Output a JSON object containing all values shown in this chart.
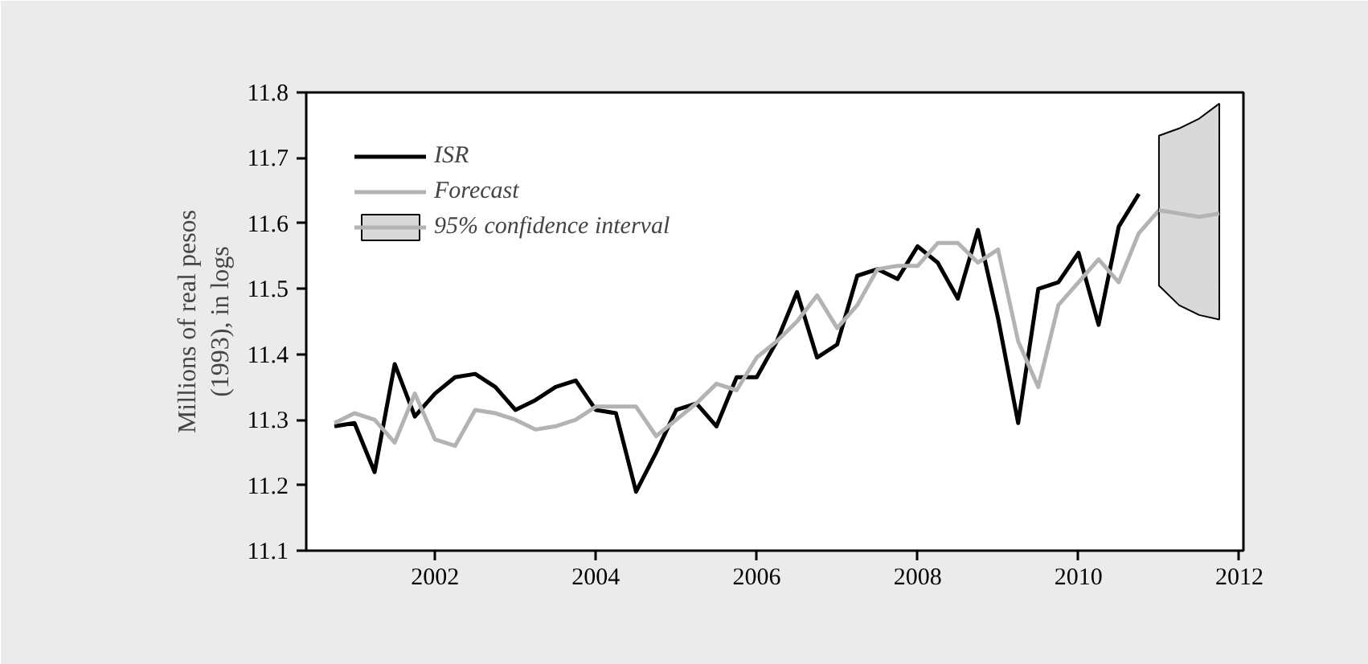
{
  "chart_data": {
    "type": "line",
    "ylabel": "Millions of real pesos\n(1993), in logs",
    "xlim": [
      2000.4,
      2012.05
    ],
    "xticks": [
      2002,
      2004,
      2006,
      2008,
      2010,
      2012
    ],
    "ylim": [
      11.1,
      11.8
    ],
    "yticks": [
      11.1,
      11.2,
      11.3,
      11.4,
      11.5,
      11.6,
      11.7,
      11.8
    ],
    "grid": false,
    "legend": "top left",
    "marker": "none",
    "line_style": "solid",
    "series": [
      {
        "name": "ISR",
        "color": "#000000",
        "x": [
          2000.75,
          2001.0,
          2001.25,
          2001.5,
          2001.75,
          2002.0,
          2002.25,
          2002.5,
          2002.75,
          2003.0,
          2003.25,
          2003.5,
          2003.75,
          2004.0,
          2004.25,
          2004.5,
          2004.75,
          2005.0,
          2005.25,
          2005.5,
          2005.75,
          2006.0,
          2006.25,
          2006.5,
          2006.75,
          2007.0,
          2007.25,
          2007.5,
          2007.75,
          2008.0,
          2008.25,
          2008.5,
          2008.75,
          2009.0,
          2009.25,
          2009.5,
          2009.75,
          2010.0,
          2010.25,
          2010.5,
          2010.75
        ],
        "values": [
          11.29,
          11.295,
          11.22,
          11.385,
          11.305,
          11.34,
          11.365,
          11.37,
          11.35,
          11.315,
          11.33,
          11.35,
          11.36,
          11.315,
          11.31,
          11.19,
          11.25,
          11.315,
          11.325,
          11.29,
          11.365,
          11.365,
          11.42,
          11.495,
          11.395,
          11.415,
          11.52,
          11.53,
          11.515,
          11.565,
          11.54,
          11.485,
          11.59,
          11.455,
          11.295,
          11.5,
          11.51,
          11.555,
          11.445,
          11.595,
          11.645
        ]
      },
      {
        "name": "Forecast",
        "color": "#b3b3b3",
        "x": [
          2000.75,
          2001.0,
          2001.25,
          2001.5,
          2001.75,
          2002.0,
          2002.25,
          2002.5,
          2002.75,
          2003.0,
          2003.25,
          2003.5,
          2003.75,
          2004.0,
          2004.25,
          2004.5,
          2004.75,
          2005.0,
          2005.25,
          2005.5,
          2005.75,
          2006.0,
          2006.25,
          2006.5,
          2006.75,
          2007.0,
          2007.25,
          2007.5,
          2007.75,
          2008.0,
          2008.25,
          2008.5,
          2008.75,
          2009.0,
          2009.25,
          2009.5,
          2009.75,
          2010.0,
          2010.25,
          2010.5,
          2010.75,
          2011.0,
          2011.25,
          2011.5,
          2011.75
        ],
        "values": [
          11.295,
          11.31,
          11.3,
          11.265,
          11.34,
          11.27,
          11.26,
          11.315,
          11.31,
          11.3,
          11.285,
          11.29,
          11.3,
          11.32,
          11.32,
          11.32,
          11.275,
          11.3,
          11.325,
          11.355,
          11.345,
          11.395,
          11.42,
          11.45,
          11.49,
          11.44,
          11.475,
          11.53,
          11.535,
          11.535,
          11.57,
          11.57,
          11.54,
          11.56,
          11.42,
          11.35,
          11.475,
          11.51,
          11.545,
          11.51,
          11.585,
          11.62,
          11.615,
          11.61,
          11.615
        ]
      },
      {
        "name": "95% confidence interval",
        "color": "#b3b3b3",
        "x": [
          2011.0,
          2011.25,
          2011.5,
          2011.75
        ],
        "values": [
          11.62,
          11.615,
          11.61,
          11.615
        ],
        "lower": [
          11.505,
          11.475,
          11.46,
          11.453
        ],
        "upper": [
          11.734,
          11.745,
          11.76,
          11.783
        ]
      }
    ]
  }
}
